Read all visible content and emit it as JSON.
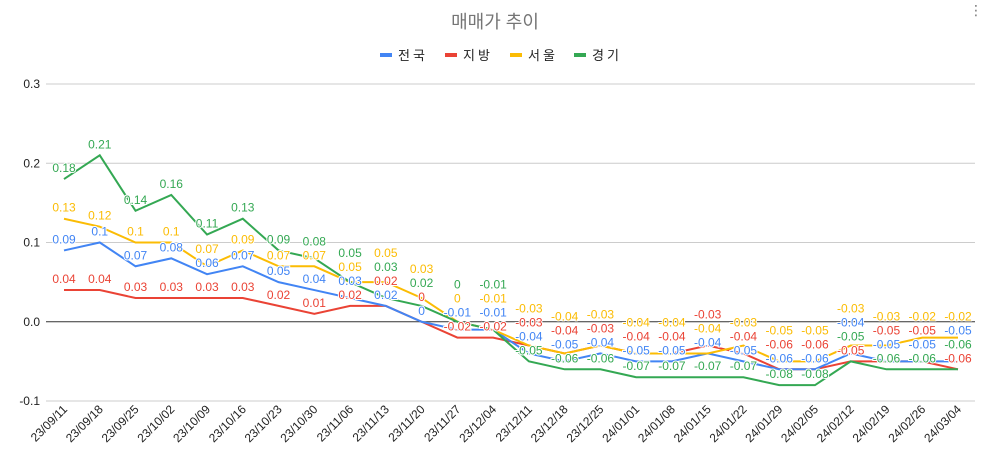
{
  "chart_data": {
    "type": "line",
    "title": "매매가 추이",
    "legend_position": "top",
    "grid": true,
    "ylim": [
      -0.1,
      0.3
    ],
    "yticks": [
      "0.3",
      "0.2",
      "0.1",
      "0.0",
      "-0.1"
    ],
    "ytick_values": [
      0.3,
      0.2,
      0.1,
      0.0,
      -0.1
    ],
    "categories": [
      "23/09/11",
      "23/09/18",
      "23/09/25",
      "23/10/02",
      "23/10/09",
      "23/10/16",
      "23/10/23",
      "23/10/30",
      "23/11/06",
      "23/11/13",
      "23/11/20",
      "23/11/27",
      "23/12/04",
      "23/12/11",
      "23/12/18",
      "23/12/25",
      "24/01/01",
      "24/01/08",
      "24/01/15",
      "24/01/22",
      "24/01/29",
      "24/02/05",
      "24/02/12",
      "24/02/19",
      "24/02/26",
      "24/03/04"
    ],
    "series": [
      {
        "name": "전국",
        "color": "#4285F4",
        "values": [
          0.09,
          0.1,
          0.07,
          0.08,
          0.06,
          0.07,
          0.05,
          0.04,
          0.03,
          0.02,
          0,
          -0.01,
          -0.01,
          -0.04,
          -0.05,
          -0.04,
          -0.05,
          -0.05,
          -0.04,
          -0.05,
          -0.06,
          -0.06,
          -0.04,
          -0.05,
          -0.05,
          -0.05
        ]
      },
      {
        "name": "지방",
        "color": "#EA4335",
        "values": [
          0.04,
          0.04,
          0.03,
          0.03,
          0.03,
          0.03,
          0.02,
          0.01,
          0.02,
          0.02,
          0,
          -0.02,
          -0.02,
          -0.03,
          -0.04,
          -0.03,
          -0.04,
          -0.04,
          -0.03,
          -0.04,
          -0.06,
          -0.06,
          -0.05,
          -0.05,
          -0.05,
          -0.06
        ]
      },
      {
        "name": "서울",
        "color": "#FBBC04",
        "values": [
          0.13,
          0.12,
          0.1,
          0.1,
          0.07,
          0.09,
          0.07,
          0.07,
          0.05,
          0.05,
          0.03,
          0,
          -0.01,
          -0.03,
          -0.04,
          -0.03,
          -0.04,
          -0.04,
          -0.04,
          -0.03,
          -0.05,
          -0.05,
          -0.03,
          -0.03,
          -0.02,
          -0.02
        ]
      },
      {
        "name": "경기",
        "color": "#34A853",
        "values": [
          0.18,
          0.21,
          0.14,
          0.16,
          0.11,
          0.13,
          0.09,
          0.08,
          0.05,
          0.03,
          0.02,
          0,
          -0.01,
          -0.05,
          -0.06,
          -0.06,
          -0.07,
          -0.07,
          -0.07,
          -0.07,
          -0.08,
          -0.08,
          -0.05,
          -0.06,
          -0.06,
          -0.06
        ]
      }
    ]
  }
}
